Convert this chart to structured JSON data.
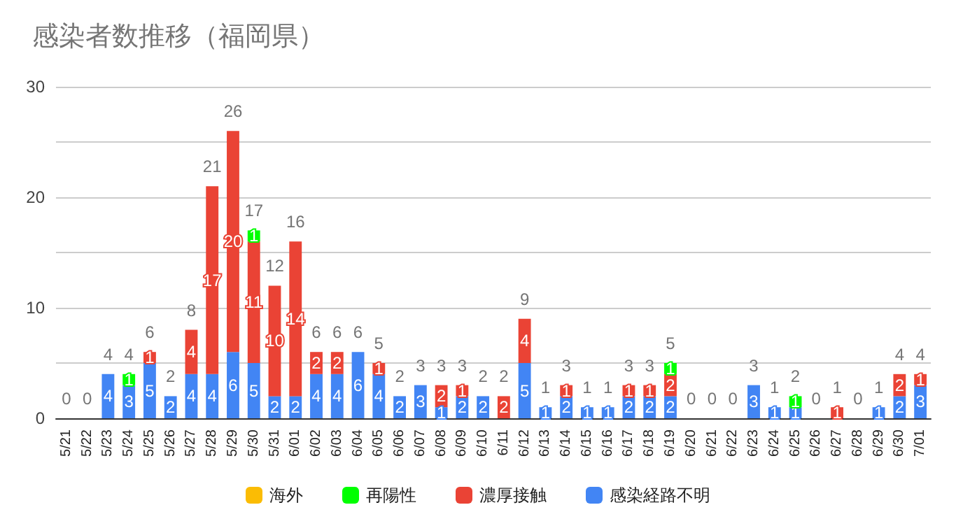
{
  "chart_data": {
    "type": "bar",
    "title": "感染者数推移（福岡県）",
    "stacked": true,
    "data_labels": true,
    "grid": "y",
    "legend": "bottom",
    "categories": [
      "5/21",
      "5/22",
      "5/23",
      "5/24",
      "5/25",
      "5/26",
      "5/27",
      "5/28",
      "5/29",
      "5/30",
      "5/31",
      "6/01",
      "6/02",
      "6/03",
      "6/04",
      "6/05",
      "6/06",
      "6/07",
      "6/08",
      "6/09",
      "6/10",
      "6/11",
      "6/12",
      "6/13",
      "6/14",
      "6/15",
      "6/16",
      "6/17",
      "6/18",
      "6/19",
      "6/20",
      "6/21",
      "6/22",
      "6/23",
      "6/24",
      "6/25",
      "6/26",
      "6/27",
      "6/28",
      "6/29",
      "6/30",
      "7/01"
    ],
    "ylim": [
      0,
      30
    ],
    "yticks": [
      0,
      10,
      20,
      30
    ],
    "series": [
      {
        "name": "感染経路不明",
        "color": "#4285f4",
        "values": [
          null,
          null,
          4,
          3,
          5,
          2,
          4,
          4,
          6,
          5,
          2,
          2,
          4,
          4,
          6,
          4,
          2,
          3,
          1,
          2,
          2,
          null,
          5,
          1,
          2,
          1,
          1,
          2,
          2,
          2,
          null,
          null,
          null,
          3,
          1,
          1,
          null,
          null,
          null,
          1,
          2,
          3
        ]
      },
      {
        "name": "濃厚接触",
        "color": "#ea4335",
        "values": [
          null,
          null,
          null,
          null,
          1,
          null,
          4,
          17,
          20,
          11,
          10,
          14,
          2,
          2,
          null,
          1,
          null,
          null,
          2,
          1,
          null,
          2,
          4,
          null,
          1,
          null,
          null,
          1,
          1,
          2,
          null,
          null,
          null,
          null,
          null,
          null,
          null,
          1,
          null,
          null,
          2,
          1
        ]
      },
      {
        "name": "再陽性",
        "color": "#00ff00",
        "values": [
          null,
          null,
          null,
          1,
          null,
          null,
          null,
          null,
          null,
          1,
          null,
          null,
          null,
          null,
          null,
          null,
          null,
          null,
          null,
          null,
          null,
          null,
          null,
          null,
          null,
          null,
          null,
          null,
          null,
          1,
          null,
          null,
          null,
          null,
          null,
          1,
          null,
          null,
          null,
          null,
          null,
          null
        ]
      },
      {
        "name": "海外",
        "color": "#fbbc04",
        "values": [
          null,
          null,
          null,
          null,
          null,
          null,
          null,
          null,
          null,
          null,
          null,
          null,
          null,
          null,
          null,
          null,
          null,
          null,
          null,
          null,
          null,
          null,
          null,
          null,
          null,
          null,
          null,
          null,
          null,
          null,
          null,
          null,
          null,
          null,
          null,
          null,
          null,
          null,
          null,
          null,
          null,
          null
        ]
      }
    ],
    "totals": [
      "0",
      "0",
      "4",
      "4",
      "6",
      "2",
      "8",
      "21",
      "26",
      "17",
      "12",
      "16",
      "6",
      "6",
      "6",
      "5",
      "2",
      "3",
      "3",
      "3",
      "2",
      "2",
      "9",
      "1",
      "3",
      "1",
      "1",
      "3",
      "3",
      "5",
      "0",
      "0",
      "0",
      "3",
      "1",
      "2",
      "0",
      "1",
      "0",
      "1",
      "4",
      "4"
    ]
  }
}
